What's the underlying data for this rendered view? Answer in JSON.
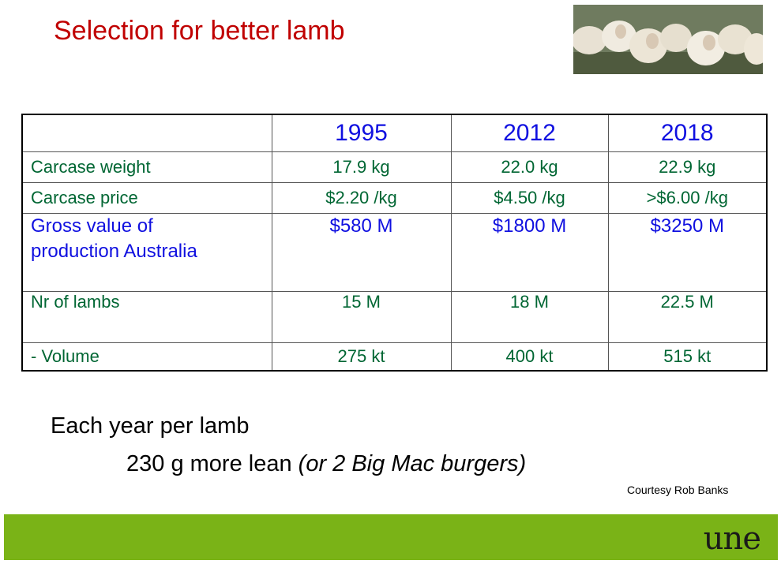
{
  "title": "Selection for better lamb",
  "photo": {
    "icon": "sheep-photo"
  },
  "table": {
    "headers": [
      "",
      "1995",
      "2012",
      "2018"
    ],
    "rows": [
      {
        "label": "Carcase weight",
        "values": [
          "17.9 kg",
          "22.0 kg",
          "22.9 kg"
        ]
      },
      {
        "label": "Carcase price",
        "values": [
          "$2.20 /kg",
          "$4.50 /kg",
          ">$6.00 /kg"
        ]
      },
      {
        "label_line1": "Gross value of",
        "label_line2": "production Australia",
        "values": [
          "$580 M",
          "$1800 M",
          "$3250 M"
        ]
      },
      {
        "label": "Nr of lambs",
        "values": [
          "15 M",
          "18 M",
          "22.5 M"
        ]
      },
      {
        "label": "- Volume",
        "values": [
          "275 kt",
          "400 kt",
          "515 kt"
        ]
      }
    ]
  },
  "text": {
    "each_year": "Each year per lamb",
    "lean_main": "230 g more lean ",
    "lean_italic": "(or 2 Big Mac burgers)",
    "courtesy": "Courtesy Rob Banks"
  },
  "footer": {
    "logo_text": "une",
    "color": "#7ab317"
  },
  "colors": {
    "title": "#c00000",
    "header": "#1010e0",
    "body": "#006633"
  }
}
